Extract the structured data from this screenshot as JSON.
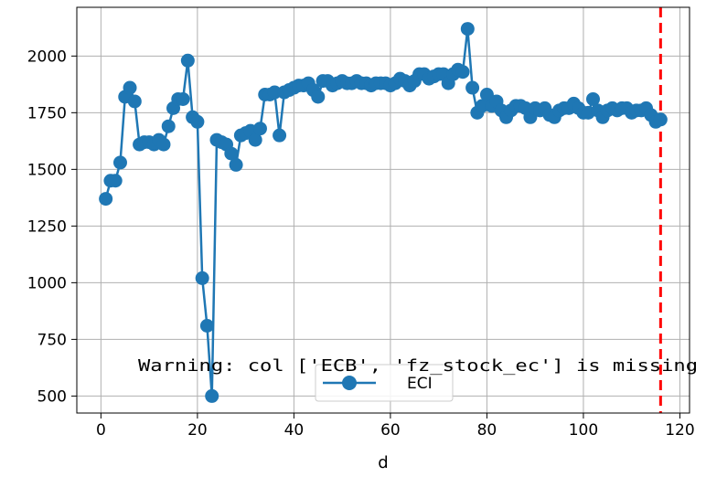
{
  "chart_data": {
    "type": "line",
    "title": "",
    "xlabel": "d",
    "ylabel": "",
    "xlim": [
      -5,
      122
    ],
    "ylim": [
      425,
      2215
    ],
    "xticks": [
      0,
      20,
      40,
      60,
      80,
      100,
      120
    ],
    "yticks": [
      500,
      750,
      1000,
      1250,
      1500,
      1750,
      2000
    ],
    "grid": true,
    "legend_position": "lower-center",
    "colors": {
      "series": "#1f77b4",
      "vline": "#ff0000",
      "grid": "#b0b0b0"
    },
    "series": [
      {
        "name": "ECI",
        "marker": "circle",
        "x": [
          1,
          2,
          3,
          4,
          5,
          6,
          7,
          8,
          9,
          10,
          11,
          12,
          13,
          14,
          15,
          16,
          17,
          18,
          19,
          20,
          21,
          22,
          23,
          24,
          25,
          26,
          27,
          28,
          29,
          30,
          31,
          32,
          33,
          34,
          35,
          36,
          37,
          38,
          39,
          40,
          41,
          42,
          43,
          44,
          45,
          46,
          47,
          48,
          49,
          50,
          51,
          52,
          53,
          54,
          55,
          56,
          57,
          58,
          59,
          60,
          61,
          62,
          63,
          64,
          65,
          66,
          67,
          68,
          69,
          70,
          71,
          72,
          73,
          74,
          75,
          76,
          77,
          78,
          79,
          80,
          81,
          82,
          83,
          84,
          85,
          86,
          87,
          88,
          89,
          90,
          91,
          92,
          93,
          94,
          95,
          96,
          97,
          98,
          99,
          100,
          101,
          102,
          103,
          104,
          105,
          106,
          107,
          108,
          109,
          110,
          111,
          112,
          113,
          114,
          115,
          116
        ],
        "values": [
          1370,
          1450,
          1450,
          1530,
          1820,
          1860,
          1800,
          1610,
          1620,
          1620,
          1610,
          1630,
          1610,
          1690,
          1770,
          1810,
          1810,
          1980,
          1730,
          1710,
          1020,
          810,
          500,
          1630,
          1620,
          1610,
          1570,
          1520,
          1650,
          1660,
          1670,
          1630,
          1680,
          1830,
          1830,
          1840,
          1650,
          1840,
          1850,
          1860,
          1870,
          1870,
          1880,
          1850,
          1820,
          1890,
          1890,
          1870,
          1880,
          1890,
          1880,
          1880,
          1890,
          1880,
          1880,
          1870,
          1880,
          1880,
          1880,
          1870,
          1880,
          1900,
          1890,
          1870,
          1890,
          1920,
          1920,
          1900,
          1910,
          1920,
          1920,
          1880,
          1920,
          1940,
          1930,
          2120,
          1860,
          1750,
          1780,
          1830,
          1780,
          1800,
          1760,
          1730,
          1760,
          1780,
          1780,
          1770,
          1730,
          1770,
          1760,
          1770,
          1740,
          1730,
          1760,
          1770,
          1770,
          1790,
          1770,
          1750,
          1750,
          1810,
          1760,
          1730,
          1760,
          1770,
          1760,
          1770,
          1770,
          1750,
          1760,
          1760,
          1770,
          1740,
          1710,
          1720
        ]
      }
    ],
    "vline": {
      "x": 116,
      "style": "dashed"
    },
    "annotation": "Warning: col ['ECB', 'fz_stock_ec'] is missing"
  }
}
